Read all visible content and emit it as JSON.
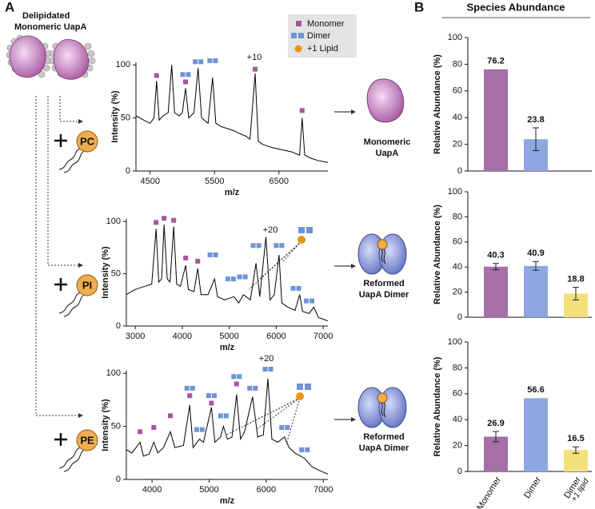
{
  "figure": {
    "panel_a": "A",
    "panel_b": "B",
    "start_label": [
      "Delipidated",
      "Monomeric UapA"
    ],
    "legend": [
      "Monomer",
      "Dimer",
      "+1 Lipid"
    ],
    "lipids": [
      "PC",
      "PI",
      "PE"
    ],
    "products": [
      [
        "Monomeric",
        "UapA"
      ],
      [
        "Reformed",
        "UapA Dimer"
      ],
      [
        "Reformed",
        "UapA Dimer"
      ]
    ]
  },
  "chart_data": [
    {
      "type": "line",
      "xlabel": "m/z",
      "ylabel": "Intensity (%)",
      "color": "#000000",
      "annotation": "+10",
      "xlim": [
        4280,
        7260
      ],
      "xticks": [
        4500,
        5500,
        6500
      ],
      "ylim": [
        0,
        110
      ],
      "yticks": [
        0,
        50,
        100
      ],
      "x": [
        4280,
        4400,
        4500,
        4560,
        4600,
        4640,
        4700,
        4780,
        4835,
        4880,
        4950,
        5000,
        5050,
        5100,
        5180,
        5245,
        5300,
        5400,
        5470,
        5520,
        5600,
        5700,
        5800,
        5900,
        5980,
        6050,
        6130,
        6180,
        6250,
        6400,
        6550,
        6700,
        6820,
        6860,
        6900,
        7000,
        7100,
        7260
      ],
      "values": [
        52,
        48,
        45,
        50,
        85,
        48,
        52,
        55,
        100,
        55,
        52,
        55,
        78,
        50,
        55,
        97,
        50,
        45,
        88,
        45,
        42,
        40,
        38,
        35,
        33,
        30,
        92,
        28,
        25,
        22,
        20,
        18,
        15,
        50,
        15,
        12,
        10,
        8
      ],
      "monomer_peaks": [
        [
          4600,
          90
        ],
        [
          5050,
          84
        ],
        [
          6130,
          96
        ],
        [
          6860,
          57
        ]
      ],
      "dimer_peaks": [
        [
          5050,
          91
        ],
        [
          5245,
          103
        ],
        [
          5470,
          104
        ]
      ],
      "lipid_peaks": []
    },
    {
      "type": "line",
      "xlabel": "m/z",
      "ylabel": "Intensity (%)",
      "color": "#000000",
      "annotation": "+20",
      "xlim": [
        2810,
        7100
      ],
      "xticks": [
        3000,
        4000,
        5000,
        6000,
        7000
      ],
      "ylim": [
        0,
        110
      ],
      "yticks": [
        0,
        50,
        100
      ],
      "x": [
        2810,
        3000,
        3200,
        3350,
        3443,
        3500,
        3560,
        3613,
        3680,
        3740,
        3818,
        3880,
        3960,
        4073,
        4130,
        4250,
        4329,
        4400,
        4550,
        4687,
        4750,
        4900,
        5100,
        5200,
        5300,
        5450,
        5570,
        5650,
        5780,
        5870,
        5960,
        6060,
        6120,
        6250,
        6400,
        6500,
        6560,
        6700,
        6800,
        6900,
        7100
      ],
      "values": [
        30,
        35,
        38,
        40,
        93,
        42,
        45,
        97,
        45,
        42,
        95,
        40,
        38,
        58,
        35,
        33,
        55,
        30,
        30,
        45,
        28,
        25,
        28,
        22,
        30,
        25,
        60,
        28,
        85,
        25,
        30,
        68,
        22,
        18,
        15,
        30,
        14,
        12,
        18,
        8,
        5
      ],
      "monomer_peaks": [
        [
          3443,
          99
        ],
        [
          3613,
          103
        ],
        [
          3818,
          101
        ],
        [
          4073,
          65
        ],
        [
          4329,
          62
        ]
      ],
      "dimer_peaks": [
        [
          4650,
          68
        ],
        [
          5030,
          45
        ],
        [
          5280,
          47
        ],
        [
          5570,
          77
        ],
        [
          6060,
          77
        ],
        [
          6420,
          36
        ],
        [
          6700,
          24
        ]
      ],
      "lipid_peaks": [
        [
          5420,
          35
        ],
        [
          5650,
          45
        ],
        [
          5900,
          55
        ],
        [
          6150,
          62
        ]
      ]
    },
    {
      "type": "line",
      "xlabel": "m/z",
      "ylabel": "Intensity (%)",
      "color": "#000000",
      "annotation": "+20",
      "xlim": [
        3550,
        7080
      ],
      "xticks": [
        4000,
        5000,
        6000,
        7000
      ],
      "ylim": [
        0,
        110
      ],
      "yticks": [
        0,
        50,
        100
      ],
      "x": [
        3550,
        3650,
        3790,
        3850,
        3950,
        4030,
        4100,
        4200,
        4320,
        4400,
        4550,
        4660,
        4720,
        4830,
        4900,
        5040,
        5100,
        5200,
        5250,
        5320,
        5400,
        5480,
        5550,
        5620,
        5760,
        5850,
        5950,
        6030,
        6100,
        6200,
        6320,
        6400,
        6500,
        6670,
        6800,
        6950,
        7080
      ],
      "values": [
        28,
        25,
        35,
        22,
        24,
        35,
        25,
        30,
        45,
        30,
        32,
        70,
        30,
        38,
        35,
        68,
        35,
        40,
        50,
        38,
        40,
        80,
        38,
        45,
        78,
        40,
        42,
        95,
        38,
        35,
        40,
        30,
        25,
        20,
        12,
        8,
        5
      ],
      "monomer_peaks": [
        [
          3790,
          45
        ],
        [
          4030,
          49
        ],
        [
          4320,
          60
        ],
        [
          4660,
          79
        ],
        [
          5040,
          72
        ],
        [
          5480,
          90
        ]
      ],
      "dimer_peaks": [
        [
          4660,
          86
        ],
        [
          4830,
          47
        ],
        [
          5040,
          79
        ],
        [
          5250,
          60
        ],
        [
          5480,
          97
        ],
        [
          5760,
          86
        ],
        [
          6030,
          104
        ],
        [
          6320,
          49
        ],
        [
          6670,
          28
        ]
      ],
      "lipid_peaks": [
        [
          5300,
          42
        ],
        [
          5600,
          50
        ],
        [
          5850,
          48
        ],
        [
          6350,
          33
        ]
      ]
    },
    {
      "type": "bar",
      "title": "Species Abundance",
      "ylabel": "Relative Abundance (%)",
      "values": [
        76.2,
        23.8
      ],
      "errors": [
        null,
        8.5
      ],
      "colors": [
        "#a66fa8",
        "#8ea7e0"
      ],
      "ylim": [
        0,
        100
      ],
      "yticks": [
        0,
        20,
        40,
        60,
        80,
        100
      ]
    },
    {
      "type": "bar",
      "ylabel": "Relative Abundance (%)",
      "values": [
        40.3,
        40.9,
        18.8
      ],
      "errors": [
        2.5,
        3.5,
        5
      ],
      "colors": [
        "#a66fa8",
        "#8ea7e0",
        "#f3e07a"
      ],
      "ylim": [
        0,
        100
      ],
      "yticks": [
        0,
        20,
        40,
        60,
        80,
        100
      ]
    },
    {
      "type": "bar",
      "ylabel": "Relative Abundance (%)",
      "categories": [
        "Monomer",
        "Dimer",
        "Dimer"
      ],
      "category_notes": [
        null,
        null,
        "+1 lipid"
      ],
      "values": [
        26.9,
        56.6,
        16.5
      ],
      "errors": [
        4,
        null,
        2.5
      ],
      "colors": [
        "#a66fa8",
        "#8ea7e0",
        "#f3e07a"
      ],
      "ylim": [
        0,
        100
      ],
      "yticks": [
        0,
        20,
        40,
        60,
        80,
        100
      ]
    }
  ]
}
